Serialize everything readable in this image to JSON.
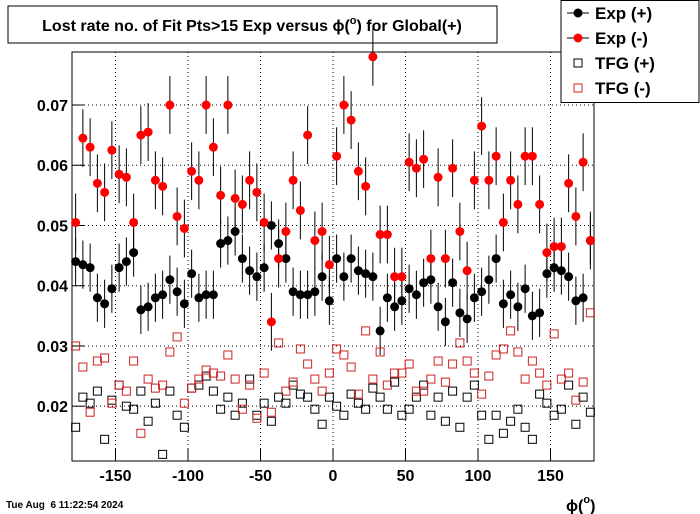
{
  "chart_data": {
    "type": "scatter",
    "title": {
      "before": "Lost rate no. of Fit Pts>15 Exp versus ϕ(",
      "sup": "o",
      "after": ") for Global(+)"
    },
    "x_label": {
      "before": "ϕ(",
      "sup": "o",
      "after": ")"
    },
    "footer": "Tue Aug  6 11:22:54 2024",
    "xlim": [
      -180,
      180
    ],
    "ylim": [
      0.0109,
      0.0788
    ],
    "xticks": [
      -150,
      -100,
      -50,
      0,
      50,
      100,
      150
    ],
    "yticks": [
      0.02,
      0.03,
      0.04,
      0.05,
      0.06,
      0.07
    ],
    "grid": true,
    "legend": "top-right",
    "x": [
      -177.5,
      -172.5,
      -167.5,
      -162.5,
      -157.5,
      -152.5,
      -147.5,
      -142.5,
      -137.5,
      -132.5,
      -127.5,
      -122.5,
      -117.5,
      -112.5,
      -107.5,
      -102.5,
      -97.5,
      -92.5,
      -87.5,
      -82.5,
      -77.5,
      -72.5,
      -67.5,
      -62.5,
      -57.5,
      -52.5,
      -47.5,
      -42.5,
      -37.5,
      -32.5,
      -27.5,
      -22.5,
      -17.5,
      -12.5,
      -7.5,
      -2.5,
      2.5,
      7.5,
      12.5,
      17.5,
      22.5,
      27.5,
      32.5,
      37.5,
      42.5,
      47.5,
      52.5,
      57.5,
      62.5,
      67.5,
      72.5,
      77.5,
      82.5,
      87.5,
      92.5,
      97.5,
      102.5,
      107.5,
      112.5,
      117.5,
      122.5,
      127.5,
      132.5,
      137.5,
      142.5,
      147.5,
      152.5,
      157.5,
      162.5,
      167.5,
      172.5,
      177.5
    ],
    "series": [
      {
        "name": "Exp (+)",
        "color": "#000000",
        "marker": "circle",
        "filled": true,
        "error": 0.004,
        "values": [
          0.044,
          0.0435,
          0.043,
          0.038,
          0.037,
          0.0395,
          0.043,
          0.044,
          0.0455,
          0.036,
          0.0365,
          0.038,
          0.0385,
          0.041,
          0.039,
          0.037,
          0.042,
          0.038,
          0.0385,
          0.0385,
          0.047,
          0.0475,
          0.049,
          0.0445,
          0.0425,
          0.0415,
          0.043,
          0.05,
          0.047,
          0.0445,
          0.039,
          0.0385,
          0.0385,
          0.039,
          0.0415,
          0.0375,
          0.0445,
          0.0415,
          0.0445,
          0.0425,
          0.042,
          0.0415,
          0.0325,
          0.038,
          0.0365,
          0.0375,
          0.0395,
          0.0385,
          0.0405,
          0.041,
          0.0365,
          0.034,
          0.0405,
          0.0355,
          0.0345,
          0.038,
          0.039,
          0.041,
          0.0445,
          0.037,
          0.0385,
          0.0365,
          0.0395,
          0.035,
          0.0355,
          0.042,
          0.043,
          0.0425,
          0.0415,
          0.0375,
          0.038,
          0.0475
        ]
      },
      {
        "name": "Exp (-)",
        "color": "#ff0000",
        "marker": "circle",
        "filled": true,
        "error": 0.0048,
        "values": [
          0.0505,
          0.0645,
          0.063,
          0.057,
          0.0555,
          0.0625,
          0.0585,
          0.058,
          0.0505,
          0.065,
          0.0655,
          0.0575,
          0.0565,
          0.07,
          0.0515,
          0.0495,
          0.059,
          0.0575,
          0.07,
          0.063,
          0.055,
          0.07,
          0.0545,
          0.0535,
          0.0575,
          0.0555,
          0.0505,
          0.034,
          0.0445,
          0.049,
          0.0575,
          0.0525,
          0.065,
          0.0475,
          0.049,
          0.0435,
          0.0615,
          0.07,
          0.0675,
          0.059,
          0.0565,
          0.078,
          0.0485,
          0.0485,
          0.0415,
          0.0415,
          0.0605,
          0.0595,
          0.061,
          0.0445,
          0.058,
          0.0445,
          0.0595,
          0.049,
          0.0425,
          0.0575,
          0.0665,
          0.0575,
          0.0615,
          0.0505,
          0.0575,
          0.0535,
          0.0615,
          0.0615,
          0.0535,
          0.0455,
          0.0465,
          0.0465,
          0.057,
          0.0515,
          0.0605,
          0.0475
        ]
      },
      {
        "name": "TFG (+)",
        "color": "#000000",
        "marker": "square",
        "filled": false,
        "values": [
          0.0165,
          0.0215,
          0.0205,
          0.0225,
          0.0145,
          0.021,
          0.0235,
          0.02,
          0.0195,
          0.0225,
          0.0175,
          0.0205,
          0.012,
          0.0225,
          0.0185,
          0.0165,
          0.023,
          0.0235,
          0.025,
          0.0225,
          0.0195,
          0.0215,
          0.0185,
          0.0205,
          0.0245,
          0.0185,
          0.0205,
          0.0175,
          0.0215,
          0.0205,
          0.0235,
          0.022,
          0.0215,
          0.0195,
          0.017,
          0.0215,
          0.02,
          0.0185,
          0.022,
          0.0205,
          0.0195,
          0.023,
          0.0215,
          0.0195,
          0.024,
          0.0185,
          0.0195,
          0.0215,
          0.0235,
          0.0185,
          0.0215,
          0.0175,
          0.0225,
          0.0165,
          0.0215,
          0.0235,
          0.0185,
          0.0145,
          0.0185,
          0.0155,
          0.0175,
          0.0195,
          0.0165,
          0.0145,
          0.022,
          0.0205,
          0.0185,
          0.0195,
          0.0235,
          0.017,
          0.0215,
          0.019
        ]
      },
      {
        "name": "TFG (-)",
        "color": "#cc2222",
        "marker": "square",
        "filled": false,
        "values": [
          0.03,
          0.0265,
          0.019,
          0.0275,
          0.028,
          0.0205,
          0.0235,
          0.0225,
          0.0275,
          0.0155,
          0.0245,
          0.023,
          0.0235,
          0.029,
          0.0315,
          0.0205,
          0.023,
          0.0245,
          0.026,
          0.0255,
          0.025,
          0.0285,
          0.0245,
          0.0195,
          0.0235,
          0.018,
          0.0255,
          0.019,
          0.0305,
          0.0225,
          0.024,
          0.0295,
          0.027,
          0.0245,
          0.0225,
          0.0255,
          0.0295,
          0.0285,
          0.0265,
          0.022,
          0.0325,
          0.0245,
          0.029,
          0.0235,
          0.0255,
          0.0255,
          0.027,
          0.0225,
          0.0225,
          0.0245,
          0.0275,
          0.024,
          0.027,
          0.0305,
          0.0275,
          0.0255,
          0.022,
          0.025,
          0.0285,
          0.0295,
          0.0325,
          0.029,
          0.0245,
          0.0275,
          0.0255,
          0.0235,
          0.032,
          0.0245,
          0.0255,
          0.021,
          0.024,
          0.0355
        ]
      }
    ]
  }
}
